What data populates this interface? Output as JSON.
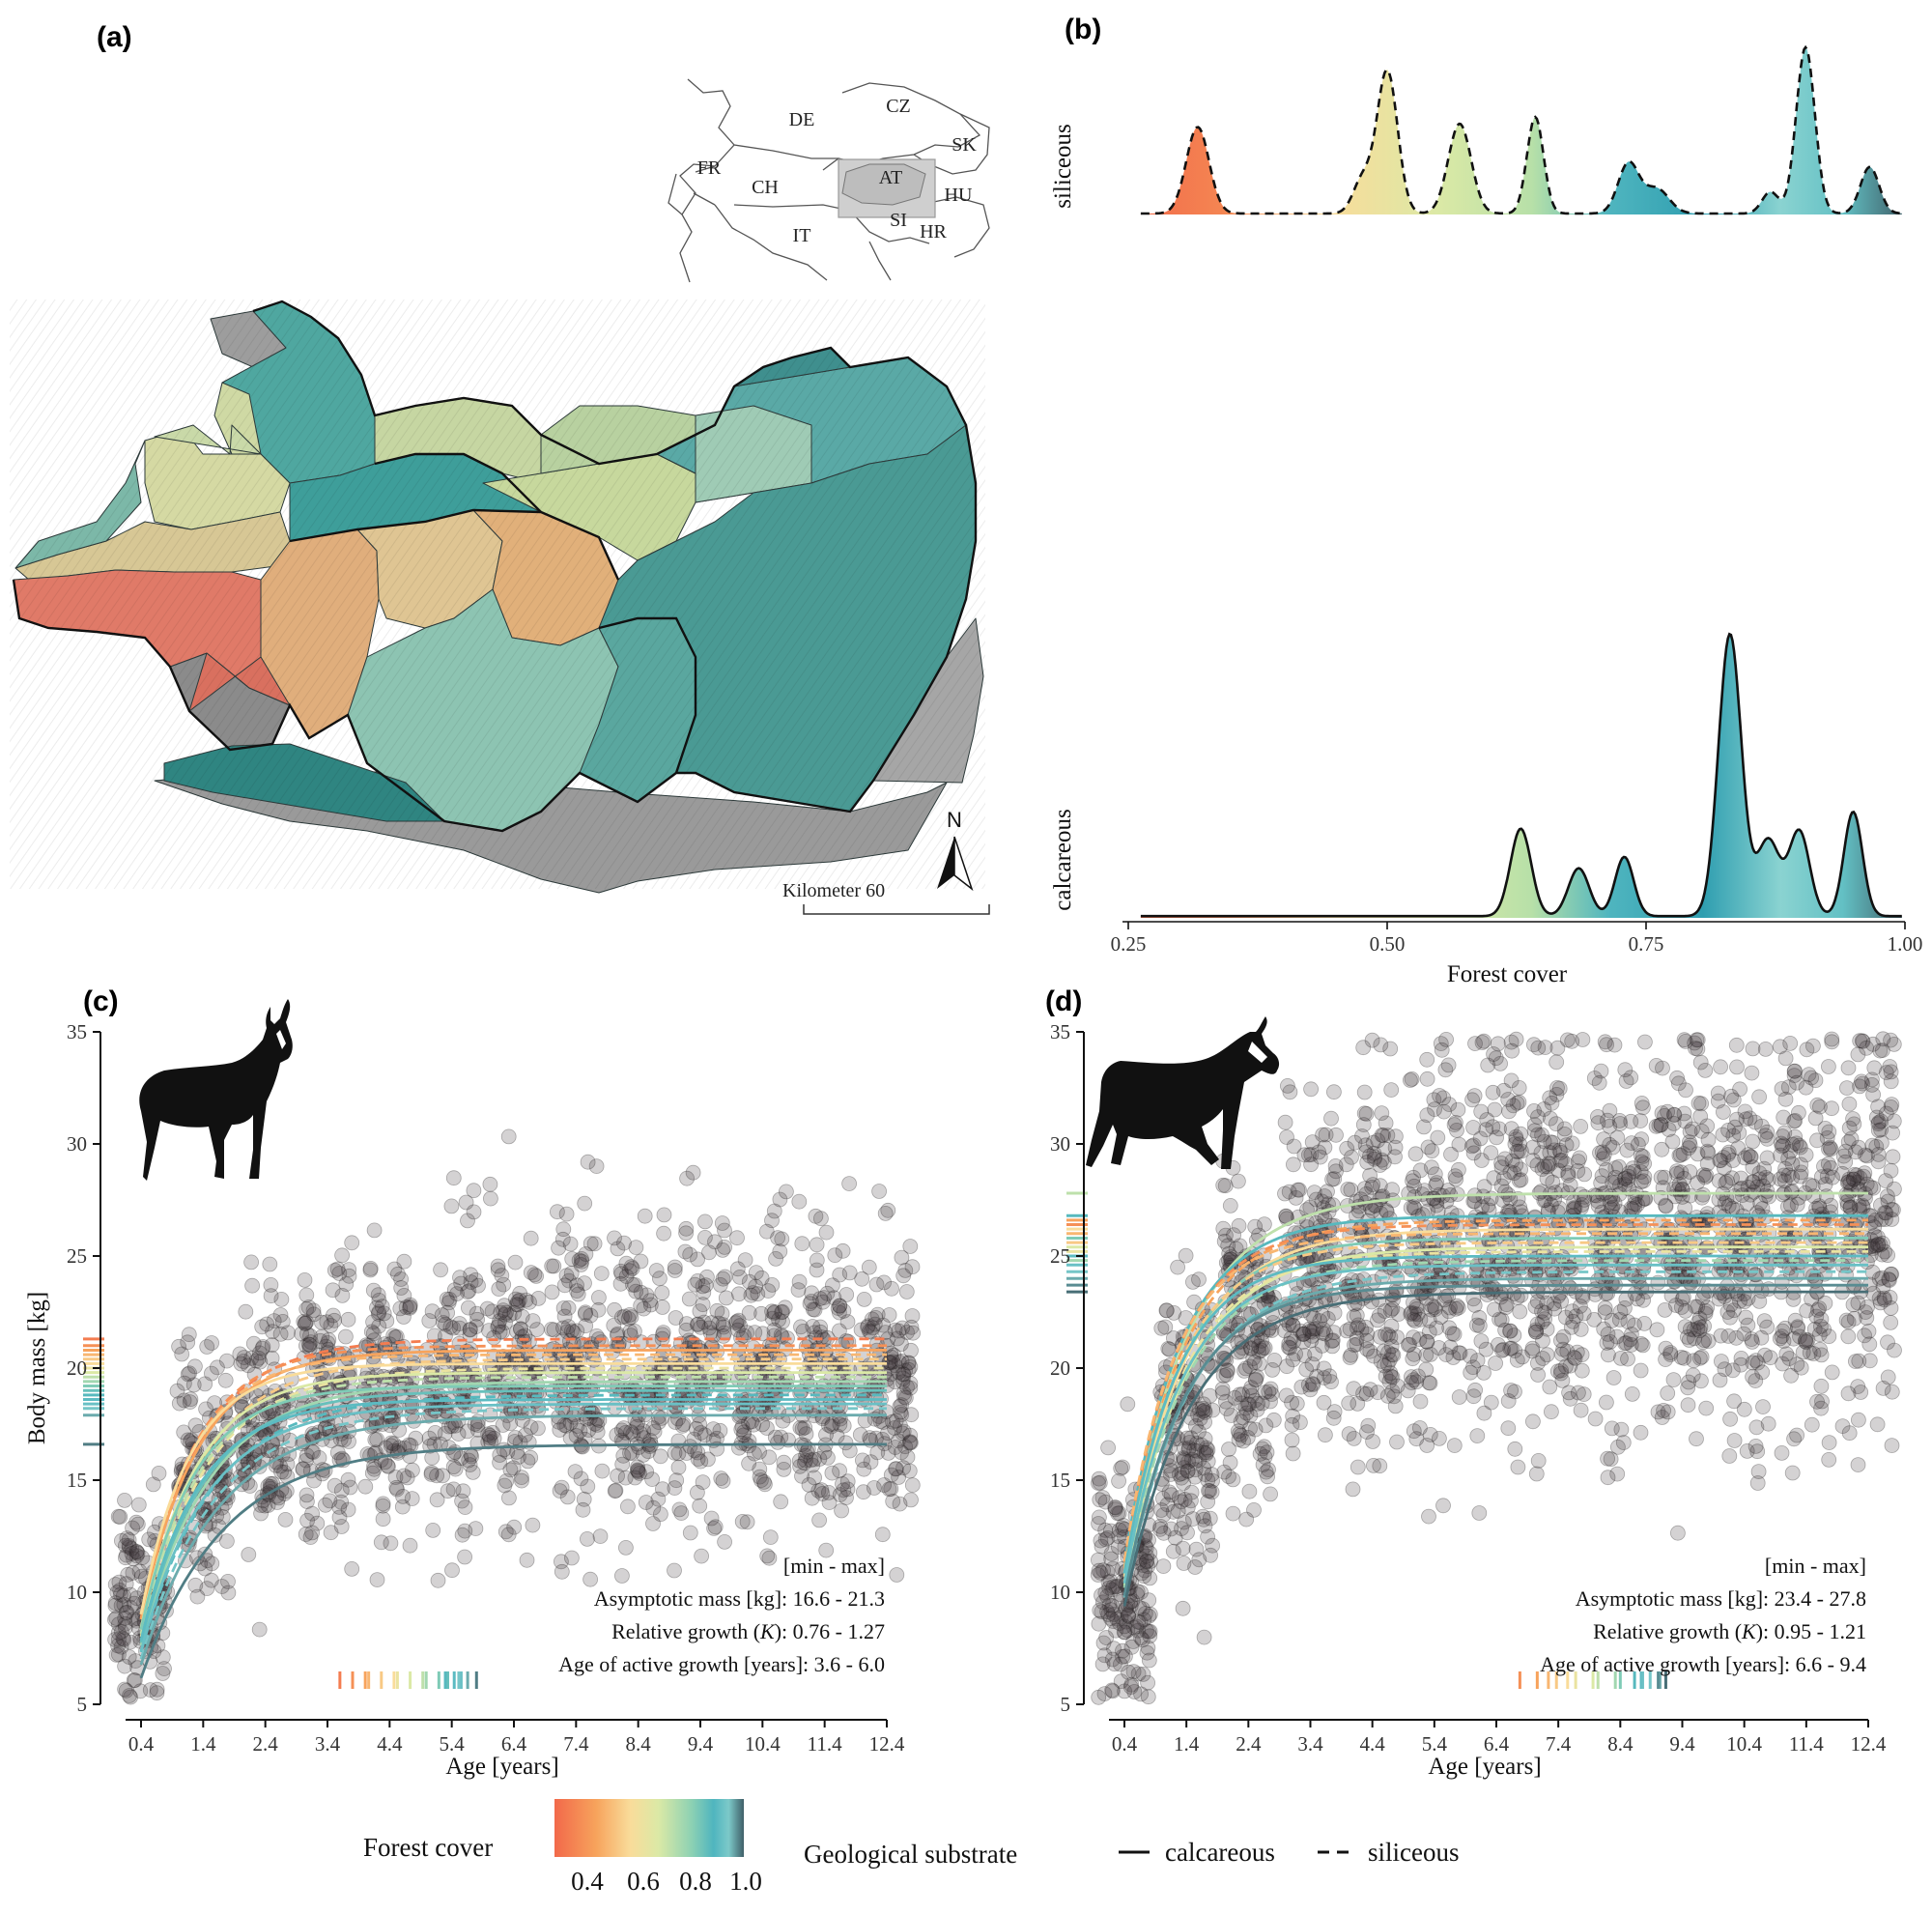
{
  "panels": {
    "a": "(a)",
    "b": "(b)",
    "c": "(c)",
    "d": "(d)"
  },
  "map": {
    "countries": [
      "DE",
      "CZ",
      "SK",
      "FR",
      "CH",
      "AT",
      "HU",
      "IT",
      "SI",
      "HR"
    ],
    "scale_label": "Kilometer 60",
    "north_label": "N"
  },
  "colors": {
    "ramp": [
      "#f2694a",
      "#f7a35c",
      "#f9dc9a",
      "#dbe9a6",
      "#8fd2b3",
      "#4fb5bf",
      "#63c0c4",
      "#3f5f68"
    ],
    "point": "#3a3336"
  },
  "chart_data": [
    {
      "id": "b",
      "type": "area",
      "title": "",
      "xlabel": "Forest cover",
      "xlim": [
        0.25,
        1.0
      ],
      "xticks": [
        "0.25",
        "0.50",
        "0.75",
        "1.00"
      ],
      "rows": [
        {
          "name": "siliceous",
          "linestyle": "dashed",
          "peaks": [
            {
              "x": 0.317,
              "height": 0.52,
              "sd": 0.011
            },
            {
              "x": 0.476,
              "height": 0.2,
              "sd": 0.009
            },
            {
              "x": 0.5,
              "height": 0.86,
              "sd": 0.01
            },
            {
              "x": 0.57,
              "height": 0.54,
              "sd": 0.011
            },
            {
              "x": 0.643,
              "height": 0.58,
              "sd": 0.008
            },
            {
              "x": 0.733,
              "height": 0.3,
              "sd": 0.01
            },
            {
              "x": 0.76,
              "height": 0.15,
              "sd": 0.012
            },
            {
              "x": 0.87,
              "height": 0.13,
              "sd": 0.008
            },
            {
              "x": 0.904,
              "height": 1.0,
              "sd": 0.009
            },
            {
              "x": 0.966,
              "height": 0.28,
              "sd": 0.009
            }
          ]
        },
        {
          "name": "calcareous",
          "linestyle": "solid",
          "peaks": [
            {
              "x": 0.629,
              "height": 0.31,
              "sd": 0.01
            },
            {
              "x": 0.685,
              "height": 0.17,
              "sd": 0.01
            },
            {
              "x": 0.729,
              "height": 0.21,
              "sd": 0.009
            },
            {
              "x": 0.831,
              "height": 1.0,
              "sd": 0.011
            },
            {
              "x": 0.868,
              "height": 0.27,
              "sd": 0.011
            },
            {
              "x": 0.898,
              "height": 0.3,
              "sd": 0.01
            },
            {
              "x": 0.95,
              "height": 0.37,
              "sd": 0.009
            }
          ]
        }
      ]
    },
    {
      "id": "c",
      "type": "scatter",
      "xlabel": "Age [years]",
      "ylabel": "Body mass [kg]",
      "xlim": [
        0.4,
        12.4
      ],
      "ylim": [
        5,
        35
      ],
      "xticks": [
        0.4,
        1.4,
        2.4,
        3.4,
        4.4,
        5.4,
        6.4,
        7.4,
        8.4,
        9.4,
        10.4,
        11.4,
        12.4
      ],
      "yticks": [
        5,
        10,
        15,
        20,
        25,
        30,
        35
      ],
      "cluster_means": [
        9.5,
        15.5,
        17.8,
        18.6,
        19.0,
        19.2,
        19.3,
        19.4,
        19.5,
        19.5,
        19.6,
        19.6,
        19.7
      ],
      "cluster_sd": [
        2.2,
        2.4,
        2.7,
        3.0,
        3.2,
        3.3,
        3.3,
        3.3,
        3.3,
        3.3,
        3.3,
        3.3,
        3.3
      ],
      "points_per_age": 150,
      "asymptote_range": [
        16.6,
        21.3
      ],
      "k_range": [
        0.76,
        1.27
      ],
      "active_growth_range": [
        3.6,
        6.0
      ],
      "growth_curves": [
        {
          "a": 21.3,
          "k": 1.05,
          "line": "dashed",
          "fc": 0.3
        },
        {
          "a": 21.0,
          "k": 1.15,
          "line": "dashed",
          "fc": 0.35
        },
        {
          "a": 20.8,
          "k": 1.1,
          "line": "solid",
          "fc": 0.4
        },
        {
          "a": 20.6,
          "k": 1.2,
          "line": "dashed",
          "fc": 0.45
        },
        {
          "a": 20.4,
          "k": 1.0,
          "line": "dashed",
          "fc": 0.5
        },
        {
          "a": 20.2,
          "k": 1.27,
          "line": "solid",
          "fc": 0.55
        },
        {
          "a": 20.0,
          "k": 0.95,
          "line": "dashed",
          "fc": 0.6
        },
        {
          "a": 19.8,
          "k": 1.12,
          "line": "solid",
          "fc": 0.65
        },
        {
          "a": 19.6,
          "k": 1.05,
          "line": "dashed",
          "fc": 0.7
        },
        {
          "a": 19.4,
          "k": 0.9,
          "line": "solid",
          "fc": 0.75
        },
        {
          "a": 19.2,
          "k": 1.18,
          "line": "solid",
          "fc": 0.8
        },
        {
          "a": 19.0,
          "k": 1.0,
          "line": "solid",
          "fc": 0.83
        },
        {
          "a": 18.8,
          "k": 0.88,
          "line": "dashed",
          "fc": 0.85
        },
        {
          "a": 18.6,
          "k": 1.1,
          "line": "solid",
          "fc": 0.88
        },
        {
          "a": 18.4,
          "k": 0.95,
          "line": "solid",
          "fc": 0.9
        },
        {
          "a": 18.2,
          "k": 0.85,
          "line": "dashed",
          "fc": 0.92
        },
        {
          "a": 17.9,
          "k": 0.8,
          "line": "solid",
          "fc": 0.95
        },
        {
          "a": 16.6,
          "k": 0.76,
          "line": "solid",
          "fc": 0.98
        }
      ],
      "annotations": {
        "header": "[min - max]",
        "asymptotic": "Asymptotic mass [kg]: 16.6 - 21.3",
        "k_prefix": "Relative growth (",
        "k_symbol": "K",
        "k_suffix": "): 0.76 - 1.27",
        "active": "Age of active growth [years]: 3.6 - 6.0"
      }
    },
    {
      "id": "d",
      "type": "scatter",
      "xlabel": "Age [years]",
      "ylabel": "",
      "xlim": [
        0.4,
        12.4
      ],
      "ylim": [
        5,
        35
      ],
      "xticks": [
        0.4,
        1.4,
        2.4,
        3.4,
        4.4,
        5.4,
        6.4,
        7.4,
        8.4,
        9.4,
        10.4,
        11.4,
        12.4
      ],
      "yticks": [
        5,
        10,
        15,
        20,
        25,
        30,
        35
      ],
      "cluster_means": [
        10.0,
        17.0,
        21.5,
        23.5,
        24.5,
        25.2,
        25.6,
        26.0,
        26.2,
        26.3,
        26.3,
        26.4,
        26.4
      ],
      "cluster_sd": [
        2.4,
        3.0,
        3.4,
        3.8,
        4.0,
        4.1,
        4.2,
        4.2,
        4.2,
        4.2,
        4.2,
        4.2,
        4.2
      ],
      "points_per_age": 190,
      "asymptote_range": [
        23.4,
        27.8
      ],
      "k_range": [
        0.95,
        1.21
      ],
      "active_growth_range": [
        6.6,
        9.4
      ],
      "growth_curves": [
        {
          "a": 27.8,
          "k": 0.95,
          "line": "solid",
          "fc": 0.7
        },
        {
          "a": 26.8,
          "k": 1.1,
          "line": "solid",
          "fc": 0.85
        },
        {
          "a": 26.6,
          "k": 1.05,
          "line": "dashed",
          "fc": 0.4
        },
        {
          "a": 26.4,
          "k": 1.15,
          "line": "dashed",
          "fc": 0.35
        },
        {
          "a": 26.2,
          "k": 1.0,
          "line": "solid",
          "fc": 0.55
        },
        {
          "a": 26.0,
          "k": 1.21,
          "line": "dashed",
          "fc": 0.45
        },
        {
          "a": 25.8,
          "k": 1.08,
          "line": "solid",
          "fc": 0.8
        },
        {
          "a": 25.6,
          "k": 1.12,
          "line": "dashed",
          "fc": 0.5
        },
        {
          "a": 25.4,
          "k": 0.98,
          "line": "solid",
          "fc": 0.65
        },
        {
          "a": 25.2,
          "k": 1.05,
          "line": "dashed",
          "fc": 0.6
        },
        {
          "a": 25.0,
          "k": 1.18,
          "line": "solid",
          "fc": 0.88
        },
        {
          "a": 24.8,
          "k": 1.02,
          "line": "dashed",
          "fc": 0.75
        },
        {
          "a": 24.6,
          "k": 1.1,
          "line": "solid",
          "fc": 0.9
        },
        {
          "a": 24.3,
          "k": 0.96,
          "line": "dashed",
          "fc": 0.92
        },
        {
          "a": 24.0,
          "k": 1.0,
          "line": "solid",
          "fc": 0.95
        },
        {
          "a": 23.7,
          "k": 1.05,
          "line": "solid",
          "fc": 0.97
        },
        {
          "a": 23.4,
          "k": 0.95,
          "line": "solid",
          "fc": 0.99
        }
      ],
      "annotations": {
        "header": "[min - max]",
        "asymptotic": "Asymptotic mass [kg]: 23.4 - 27.8",
        "k_prefix": "Relative growth (",
        "k_symbol": "K",
        "k_suffix": "): 0.95 - 1.21",
        "active": "Age of active growth [years]: 6.6 - 9.4"
      }
    }
  ],
  "legend": {
    "forest_cover_label": "Forest cover",
    "ticks": [
      "0.4",
      "0.6",
      "0.8",
      "1.0"
    ],
    "substrate_label": "Geological substrate",
    "calcareous": "calcareous",
    "siliceous": "siliceous"
  }
}
